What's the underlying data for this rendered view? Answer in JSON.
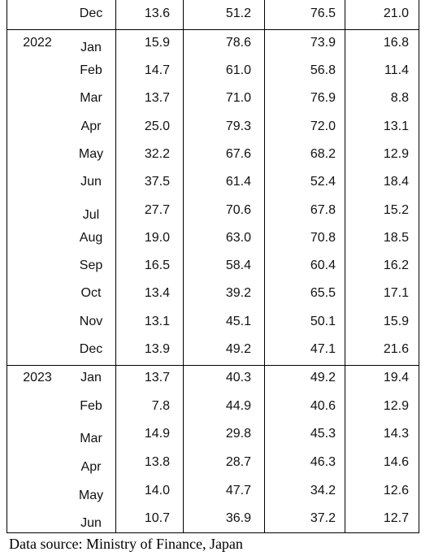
{
  "rows": [
    {
      "year": "",
      "month": "Dec",
      "v1": "13.6",
      "v2": "51.2",
      "v3": "76.5",
      "v4": "21.0"
    },
    {
      "year": "2022",
      "month": "Jan",
      "v1": "15.9",
      "v2": "78.6",
      "v3": "73.9",
      "v4": "16.8"
    },
    {
      "year": "",
      "month": "Feb",
      "v1": "14.7",
      "v2": "61.0",
      "v3": "56.8",
      "v4": "11.4"
    },
    {
      "year": "",
      "month": "Mar",
      "v1": "13.7",
      "v2": "71.0",
      "v3": "76.9",
      "v4": "8.8"
    },
    {
      "year": "",
      "month": "Apr",
      "v1": "25.0",
      "v2": "79.3",
      "v3": "72.0",
      "v4": "13.1"
    },
    {
      "year": "",
      "month": "May",
      "v1": "32.2",
      "v2": "67.6",
      "v3": "68.2",
      "v4": "12.9"
    },
    {
      "year": "",
      "month": "Jun",
      "v1": "37.5",
      "v2": "61.4",
      "v3": "52.4",
      "v4": "18.4"
    },
    {
      "year": "",
      "month": "Jul",
      "v1": "27.7",
      "v2": "70.6",
      "v3": "67.8",
      "v4": "15.2"
    },
    {
      "year": "",
      "month": "Aug",
      "v1": "19.0",
      "v2": "63.0",
      "v3": "70.8",
      "v4": "18.5"
    },
    {
      "year": "",
      "month": "Sep",
      "v1": "16.5",
      "v2": "58.4",
      "v3": "60.4",
      "v4": "16.2"
    },
    {
      "year": "",
      "month": "Oct",
      "v1": "13.4",
      "v2": "39.2",
      "v3": "65.5",
      "v4": "17.1"
    },
    {
      "year": "",
      "month": "Nov",
      "v1": "13.1",
      "v2": "45.1",
      "v3": "50.1",
      "v4": "15.9"
    },
    {
      "year": "",
      "month": "Dec",
      "v1": "13.9",
      "v2": "49.2",
      "v3": "47.1",
      "v4": "21.6"
    },
    {
      "year": "2023",
      "month": "Jan",
      "v1": "13.7",
      "v2": "40.3",
      "v3": "49.2",
      "v4": "19.4"
    },
    {
      "year": "",
      "month": "Feb",
      "v1": "7.8",
      "v2": "44.9",
      "v3": "40.6",
      "v4": "12.9"
    },
    {
      "year": "",
      "month": "Mar",
      "v1": "14.9",
      "v2": "29.8",
      "v3": "45.3",
      "v4": "14.3"
    },
    {
      "year": "",
      "month": "Apr",
      "v1": "13.8",
      "v2": "28.7",
      "v3": "46.3",
      "v4": "14.6"
    },
    {
      "year": "",
      "month": "May",
      "v1": "14.0",
      "v2": "47.7",
      "v3": "34.2",
      "v4": "12.6"
    },
    {
      "year": "",
      "month": "Jun",
      "v1": "10.7",
      "v2": "36.9",
      "v3": "37.2",
      "v4": "12.7"
    }
  ],
  "source": "Data source: Ministry of Finance, Japan"
}
